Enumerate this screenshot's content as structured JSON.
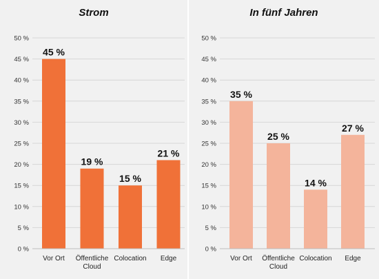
{
  "chart_data": [
    {
      "type": "bar",
      "title": "Strom",
      "categories": [
        [
          "Vor Ort"
        ],
        [
          "Öffentliche",
          "Cloud"
        ],
        [
          "Colocation"
        ],
        [
          "Edge"
        ]
      ],
      "values": [
        45,
        19,
        15,
        21
      ],
      "data_labels": [
        "45 %",
        "19 %",
        "15 %",
        "21 %"
      ],
      "yticks": [
        "0 %",
        "5 %",
        "10 %",
        "15 %",
        "20 %",
        "25 %",
        "30 %",
        "35 %",
        "40 %",
        "45 %",
        "50 %"
      ],
      "ylim": [
        0,
        50
      ],
      "grid": true,
      "bar_color": "#f07138"
    },
    {
      "type": "bar",
      "title": "In fünf Jahren",
      "categories": [
        [
          "Vor Ort"
        ],
        [
          "Öffentliche",
          "Cloud"
        ],
        [
          "Colocation"
        ],
        [
          "Edge"
        ]
      ],
      "values": [
        35,
        25,
        14,
        27
      ],
      "data_labels": [
        "35 %",
        "25 %",
        "14 %",
        "27 %"
      ],
      "yticks": [
        "0 %",
        "5 %",
        "10 %",
        "15 %",
        "20 %",
        "25 %",
        "30 %",
        "35 %",
        "40 %",
        "45 %",
        "50 %"
      ],
      "ylim": [
        0,
        50
      ],
      "grid": true,
      "bar_color": "#f4b49b"
    }
  ]
}
